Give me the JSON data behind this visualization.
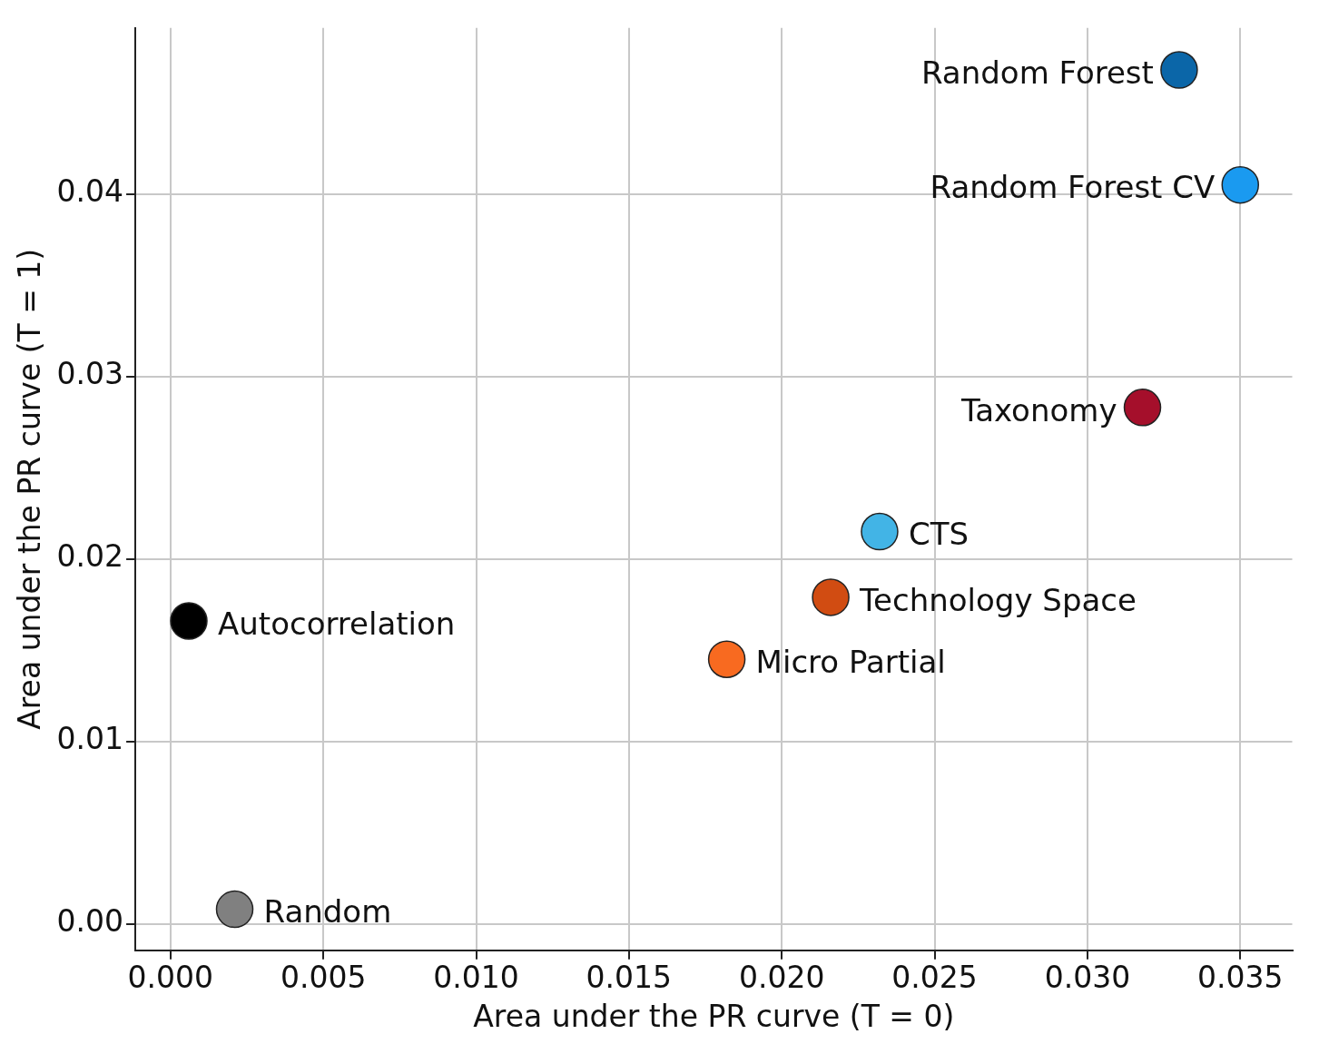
{
  "chart_data": {
    "type": "scatter",
    "xlabel": "Area under the PR curve (T = 0)",
    "ylabel": "Area under the PR curve (T = 1)",
    "xlim": [
      -0.00115,
      0.0367
    ],
    "ylim": [
      -0.00145,
      0.0491
    ],
    "xticks": [
      {
        "value": 0,
        "label": "0.000"
      },
      {
        "value": 0.005,
        "label": "0.005"
      },
      {
        "value": 0.01,
        "label": "0.010"
      },
      {
        "value": 0.015,
        "label": "0.015"
      },
      {
        "value": 0.02,
        "label": "0.020"
      },
      {
        "value": 0.025,
        "label": "0.025"
      },
      {
        "value": 0.03,
        "label": "0.030"
      },
      {
        "value": 0.035,
        "label": "0.035"
      }
    ],
    "yticks": [
      {
        "value": 0,
        "label": "0.00"
      },
      {
        "value": 0.01,
        "label": "0.01"
      },
      {
        "value": 0.02,
        "label": "0.02"
      },
      {
        "value": 0.03,
        "label": "0.03"
      },
      {
        "value": 0.04,
        "label": "0.04"
      }
    ],
    "grid": true,
    "legend": false,
    "marker": "circle",
    "series": [
      {
        "name": "Random Forest",
        "color": "#0b66a8",
        "x": [
          0.033
        ],
        "values": [
          0.0468
        ]
      },
      {
        "name": "Random Forest CV",
        "color": "#1a9af0",
        "x": [
          0.035
        ],
        "values": [
          0.0405
        ]
      },
      {
        "name": "Taxonomy",
        "color": "#a50f2b",
        "x": [
          0.0318
        ],
        "values": [
          0.0283
        ]
      },
      {
        "name": "CTS",
        "color": "#42b4e6",
        "x": [
          0.0232
        ],
        "values": [
          0.0215
        ]
      },
      {
        "name": "Technology Space",
        "color": "#d14c12",
        "x": [
          0.0216
        ],
        "values": [
          0.0179
        ]
      },
      {
        "name": "Micro Partial",
        "color": "#f86a20",
        "x": [
          0.0182
        ],
        "values": [
          0.0145
        ]
      },
      {
        "name": "Autocorrelation",
        "color": "#000000",
        "x": [
          0.0006
        ],
        "values": [
          0.0166
        ]
      },
      {
        "name": "Random",
        "color": "#808080",
        "x": [
          0.0021
        ],
        "values": [
          0.0008
        ]
      }
    ]
  }
}
